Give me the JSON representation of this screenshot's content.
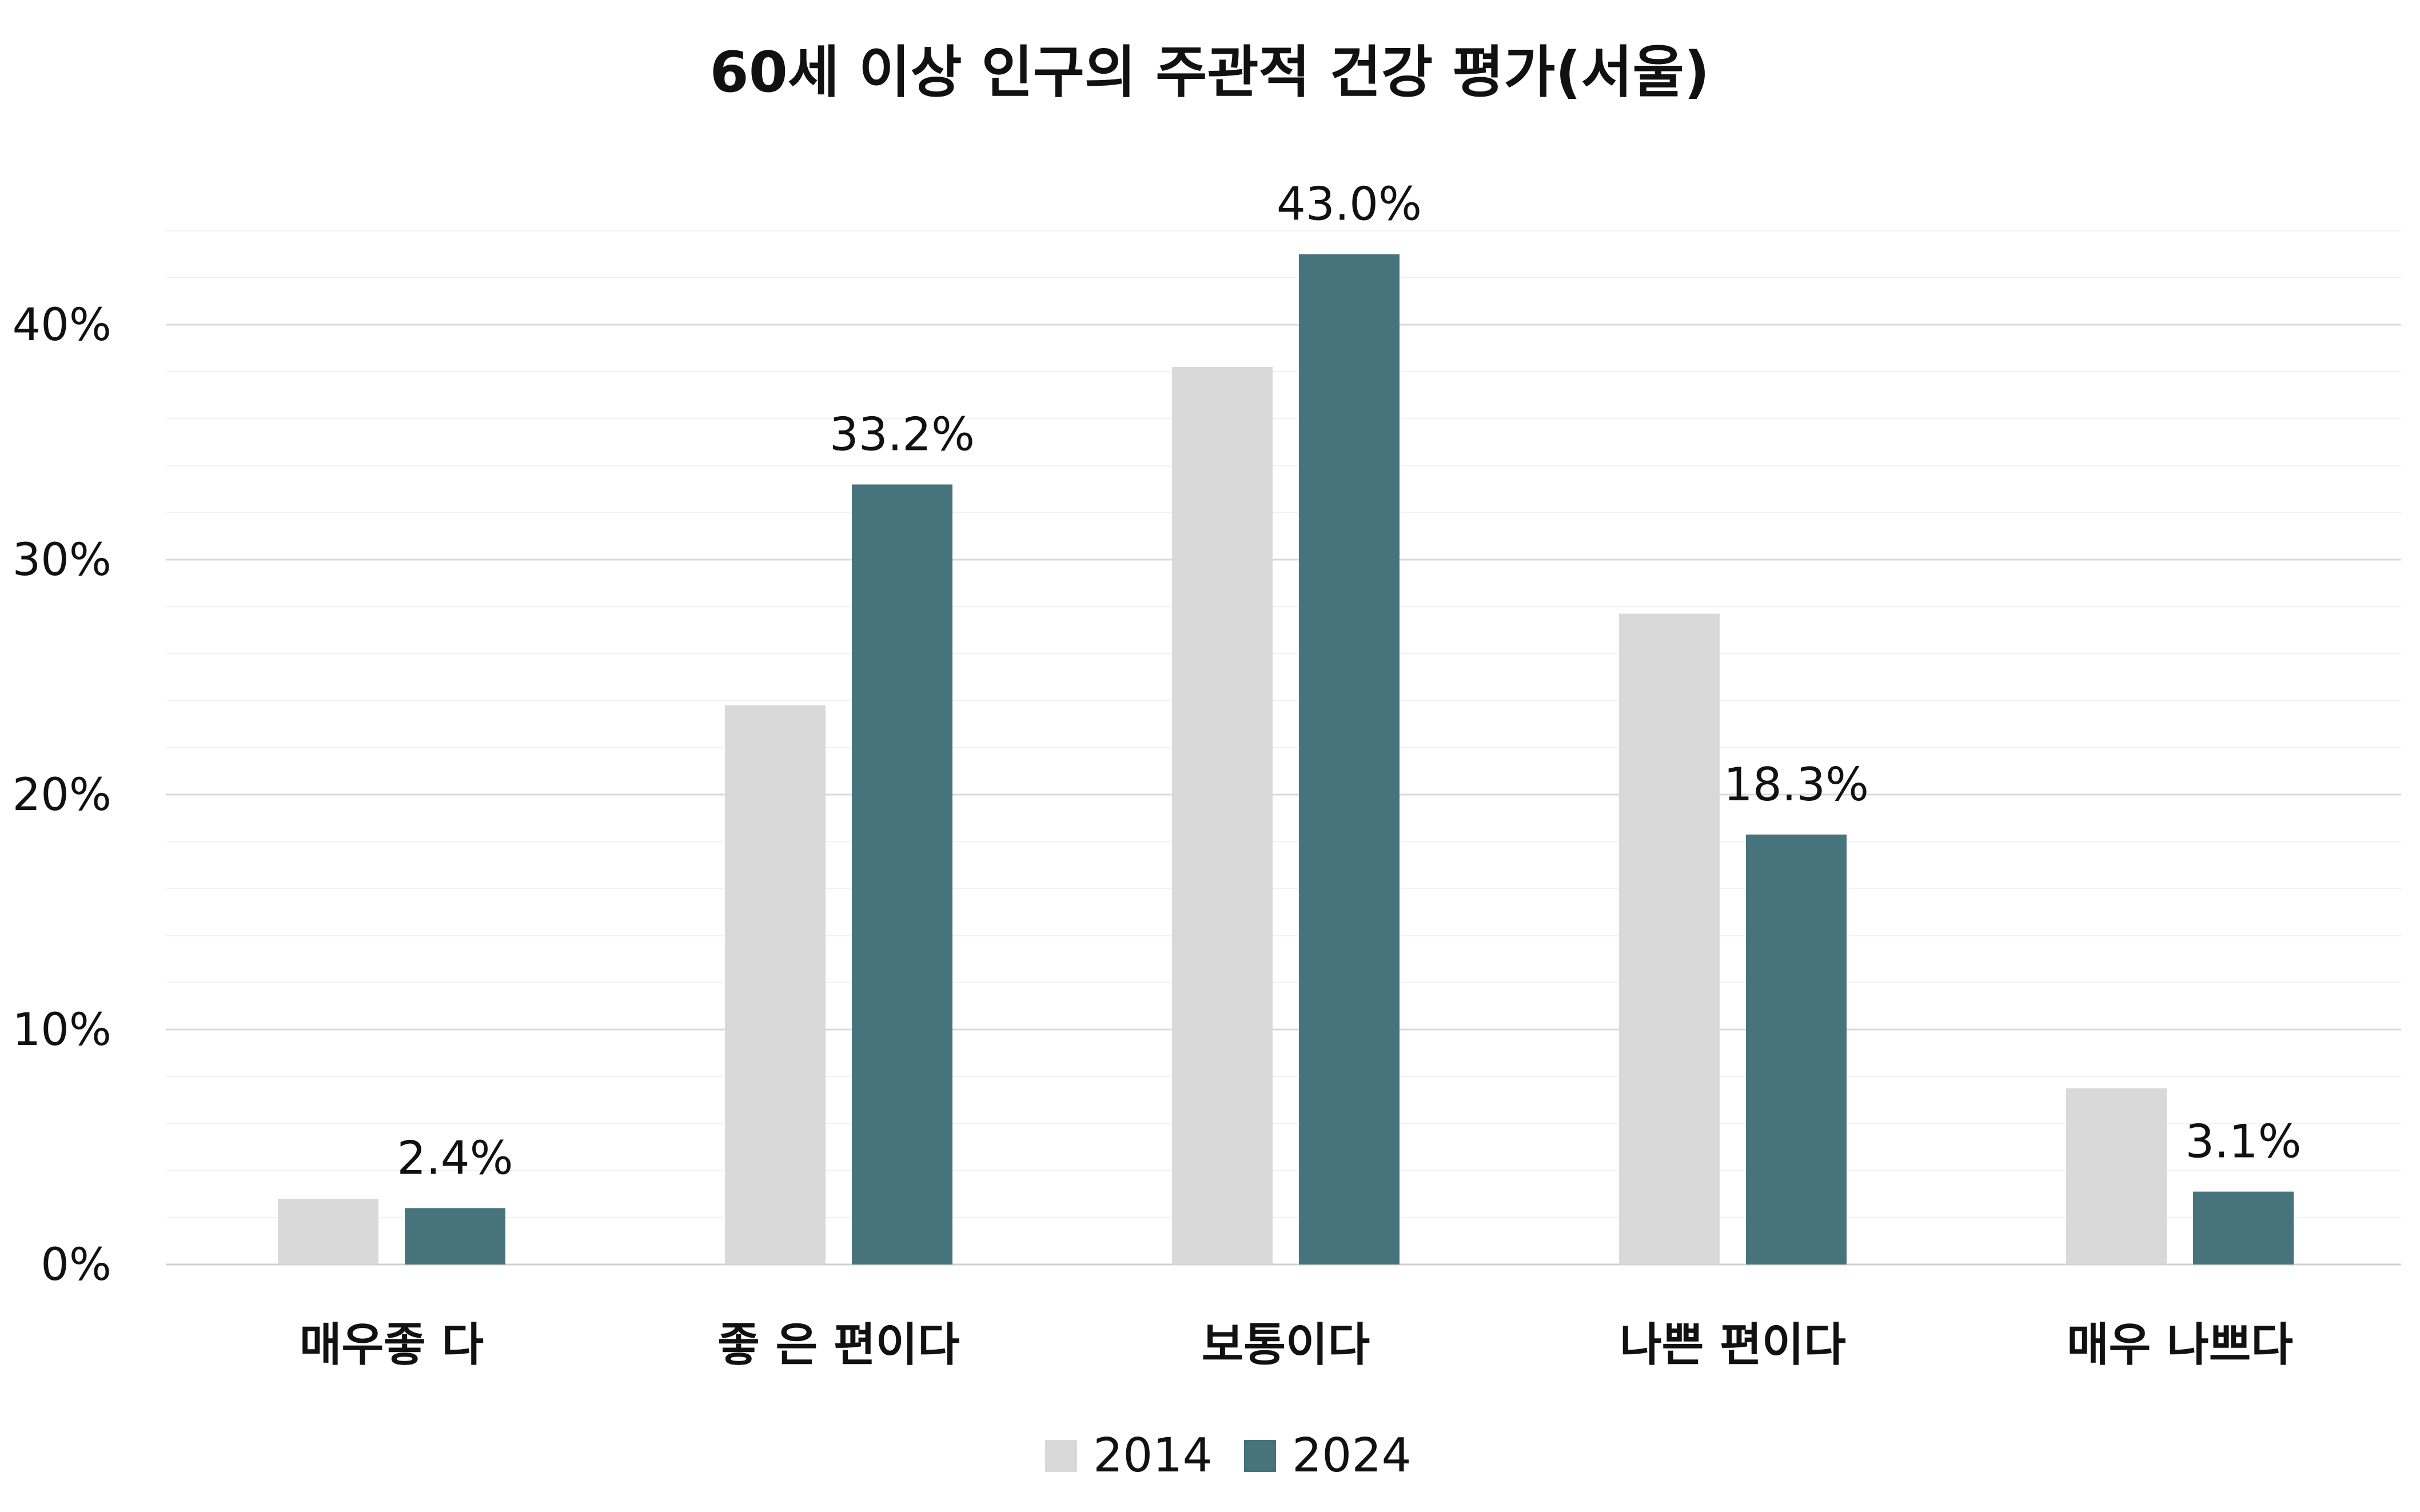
{
  "chart_data": {
    "type": "bar",
    "title": "60세 이상 인구의 주관적 건강 평가(서울)",
    "categories": [
      "매우좋 다",
      "좋 은 편이다",
      "보통이다",
      "나쁜 편이다",
      "매우 나쁘다"
    ],
    "series": [
      {
        "name": "2014",
        "color": "#d9d9d9",
        "values": [
          2.8,
          23.8,
          38.2,
          27.7,
          7.5
        ],
        "labels": [
          "",
          "",
          "",
          "",
          ""
        ]
      },
      {
        "name": "2024",
        "color": "#47737d",
        "values": [
          2.4,
          33.2,
          43.0,
          18.3,
          3.1
        ],
        "labels": [
          "2.4%",
          "33.2%",
          "43.0%",
          "18.3%",
          "3.1%"
        ]
      }
    ],
    "ylim": [
      0,
      44
    ],
    "yticks": [
      0,
      10,
      20,
      30,
      40
    ],
    "ytick_labels": [
      "0%",
      "10%",
      "20%",
      "30%",
      "40%"
    ],
    "xlabel": "",
    "ylabel": "",
    "grid": true,
    "legend": "bottom"
  }
}
